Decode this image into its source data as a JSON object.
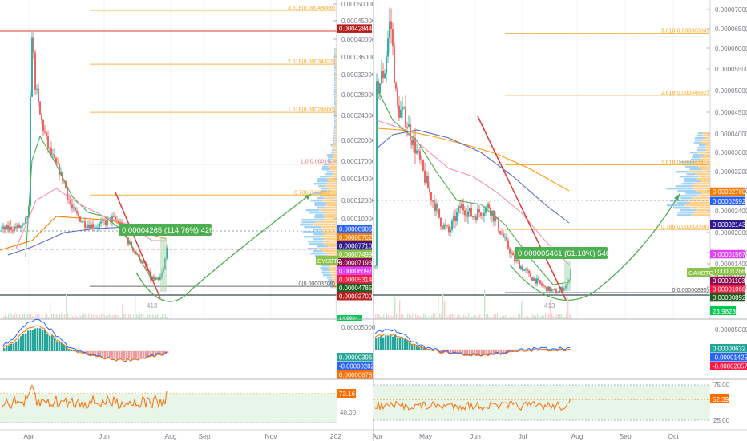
{
  "chart_data": [
    {
      "type": "line",
      "symbol": "EYSBTC",
      "price_labels": [
        {
          "text": "0.00042844",
          "color": "#b71c1c",
          "value": 0.00042844
        },
        {
          "text": "0.00008906",
          "color": "#2962ff",
          "value": 8.906e-05
        },
        {
          "text": "0.00008762",
          "color": "#f57c00",
          "value": 8.762e-05
        },
        {
          "text": "0.00007710",
          "color": "#311b92",
          "value": 7.71e-05
        },
        {
          "text": "0.00007499",
          "color": "#8bc34a",
          "value": 7.499e-05
        },
        {
          "text": "0.00007193",
          "color": "#880e4f",
          "value": 7.193e-05
        },
        {
          "text": "0.00006097",
          "color": "#e040fb",
          "value": 6.097e-05
        },
        {
          "text": "0.00005314",
          "color": "#ff1744",
          "value": 5.314e-05
        },
        {
          "text": "0.00004785",
          "color": "#1b5e20",
          "value": 4.785e-05
        },
        {
          "text": "0.00003700",
          "color": "#b71c1c",
          "value": 3.7e-05
        }
      ],
      "axis_ticks": [
        "0.00050000",
        "0.00045000",
        "0.00040000",
        "0.00036000",
        "0.00032000",
        "0.00028000",
        "0.00024000",
        "0.00020000",
        "0.00017000",
        "0.00014000",
        "0.00012000",
        "0.00010000"
      ],
      "fib_labels": [
        {
          "text": "3.618(0.00048086)",
          "value": 0.00048086,
          "color": "#f5a623"
        },
        {
          "text": "2.618(0.00034333)",
          "value": 0.00034333,
          "color": "#f5a623"
        },
        {
          "text": "1.618(0.00024600)",
          "value": 0.000246,
          "color": "#f5a623"
        },
        {
          "text": "1.0(0.00016...",
          "value": 0.000165,
          "color": "#e57373"
        },
        {
          "text": "0.786(0.00012...",
          "value": 0.000125,
          "color": "#f5a623"
        },
        {
          "text": "0(0.00003708)",
          "value": 3.708e-05,
          "color": "#555555"
        }
      ],
      "measure_label": "0.00004265 (114.76%) 4265",
      "low_label": "413",
      "volume_label": "14.9984",
      "x_ticks": [
        "Apr",
        "Jun",
        "Aug",
        "Sep",
        "Nov",
        "202"
      ],
      "macd": {
        "labels": [
          {
            "text": "0.00000396",
            "color": "#26a69a"
          },
          {
            "text": "-0.00000282",
            "color": "#2962ff"
          },
          {
            "text": "0.00000678",
            "color": "#ff6d00"
          }
        ],
        "axis_top": "0.00005000"
      },
      "rsi": {
        "value_label": "73.16",
        "axis_tick": "40.00"
      }
    },
    {
      "type": "line",
      "symbol": "OAXBTC",
      "price_labels": [
        {
          "text": "0.00002780",
          "color": "#f57c00",
          "value": 2.78e-05
        },
        {
          "text": "0.00002592",
          "color": "#2962ff",
          "value": 2.592e-05
        },
        {
          "text": "0.00002143",
          "color": "#311b92",
          "value": 2.143e-05
        },
        {
          "text": "0.00001567",
          "color": "#e040fb",
          "value": 1.567e-05
        },
        {
          "text": "0.00001266",
          "color": "#8bc34a",
          "value": 1.266e-05
        },
        {
          "text": "0.00001103",
          "color": "#880e4f",
          "value": 1.103e-05
        },
        {
          "text": "0.00001066",
          "color": "#ff1744",
          "value": 1.066e-05
        },
        {
          "text": "0.00000892",
          "color": "#1b5e20",
          "value": 8.92e-06
        }
      ],
      "axis_ticks": [
        "0.00007000",
        "0.00006500",
        "0.00006000",
        "0.00005500",
        "0.00005000",
        "0.00004500",
        "0.00004000",
        "0.00003600",
        "0.00003200",
        "0.00002800",
        "0.00002400",
        "0.00002000",
        "0.00001600",
        "0.00001400",
        "0.00001200",
        "0.00001000"
      ],
      "fib_labels": [
        {
          "text": "3.618(0.00006384)",
          "value": 6.384e-05,
          "color": "#f5a623"
        },
        {
          "text": "2.618(0.00004892)",
          "value": 4.892e-05,
          "color": "#f5a623"
        },
        {
          "text": "1.618(0.00003341)",
          "value": 3.341e-05,
          "color": "#f5a623"
        },
        {
          "text": "0.786(0.00002058)",
          "value": 2.058e-05,
          "color": "#f5a623"
        },
        {
          "text": "0(0.00000895)",
          "value": 8.95e-06,
          "color": "#555555"
        }
      ],
      "measure_label": "0.000005461 (61.18%) 5461",
      "low_label": "413",
      "volume_label": "23.9828",
      "x_ticks": [
        "Apr",
        "May",
        "Jun",
        "Jul",
        "Aug",
        "Sep",
        "Oct"
      ],
      "macd": {
        "labels": [
          {
            "text": "0.00000632",
            "color": "#26a69a"
          },
          {
            "text": "-0.00001425",
            "color": "#2962ff"
          },
          {
            "text": "-0.00002057",
            "color": "#ff1744"
          }
        ],
        "axis_top": "0.00005000"
      },
      "rsi": {
        "value_label": "52.39",
        "axis_ticks": [
          "75.00",
          "25.00"
        ]
      }
    }
  ]
}
